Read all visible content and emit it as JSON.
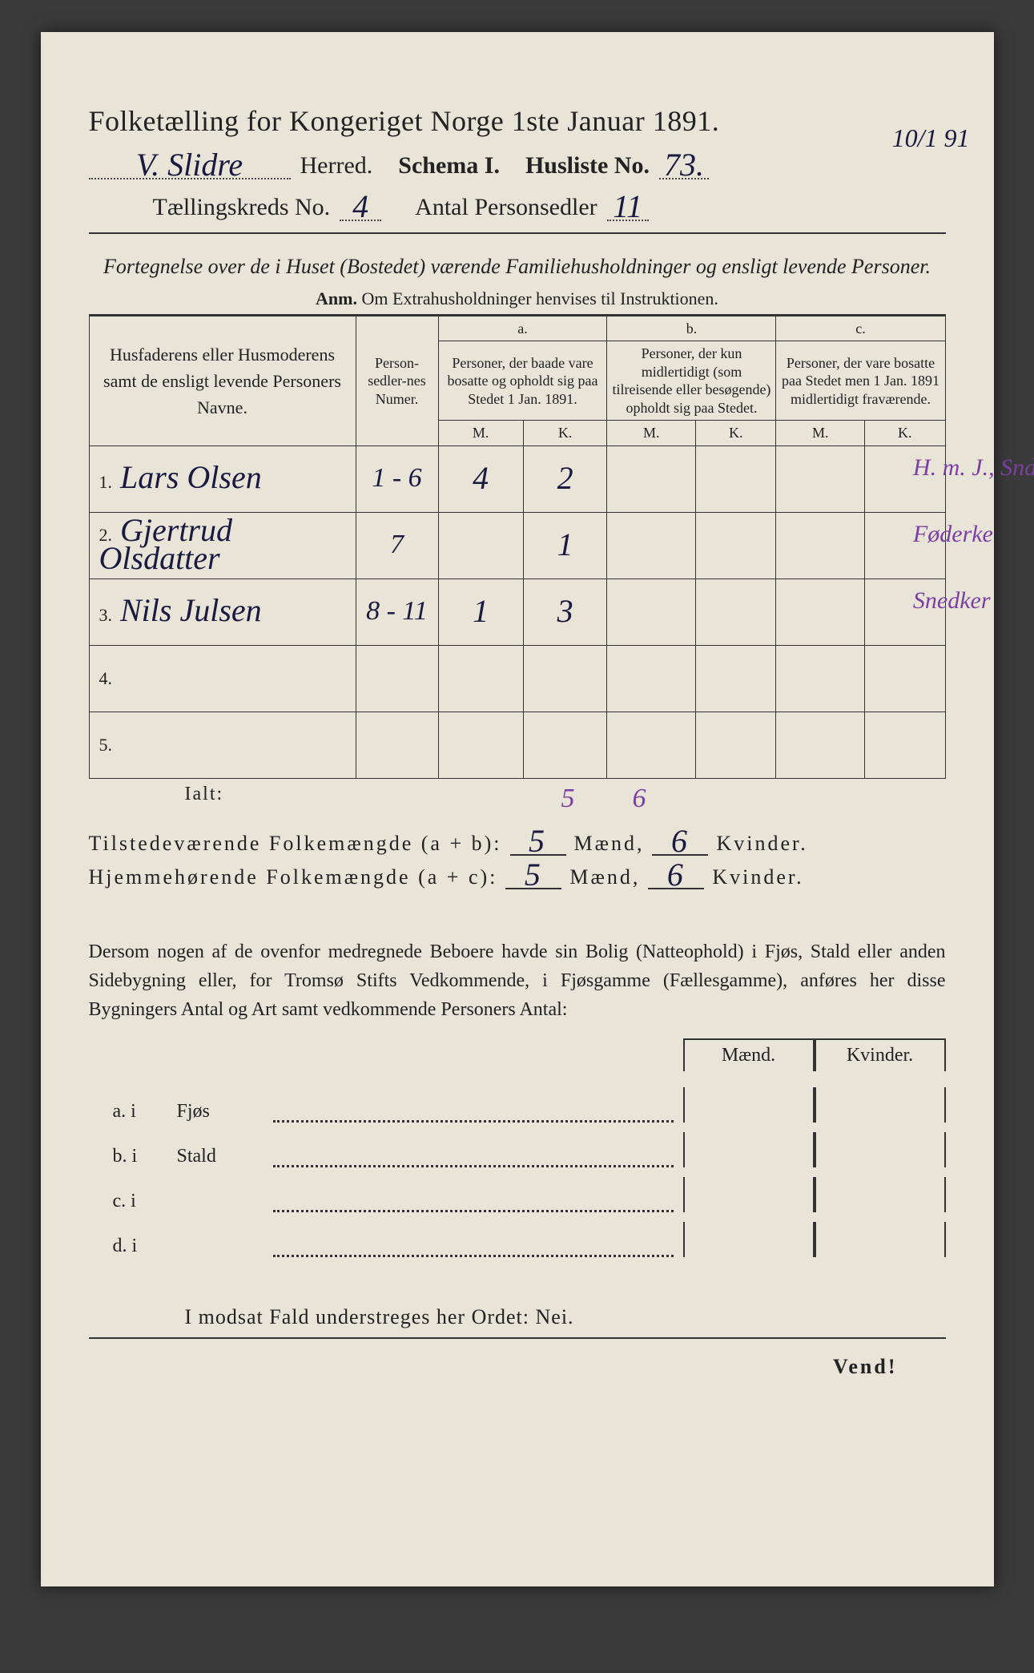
{
  "title": "Folketælling for Kongeriget Norge 1ste Januar 1891.",
  "herred_value": "V. Slidre",
  "herred_label": "Herred.",
  "schema_label": "Schema I.",
  "husliste_label": "Husliste No.",
  "husliste_value": "73.",
  "date_frac": "10/1 91",
  "kreds_label": "Tællingskreds No.",
  "kreds_value": "4",
  "antal_label": "Antal Personsedler",
  "antal_value": "11",
  "subheading": "Fortegnelse over de i Huset (Bostedet) værende Familiehusholdninger og ensligt levende Personer.",
  "anm_bold": "Anm.",
  "anm_text": "Om Extrahusholdninger henvises til Instruktionen.",
  "cols": {
    "name": "Husfaderens eller Husmoderens samt de ensligt levende Personers Navne.",
    "numer": "Person-sedler-nes Numer.",
    "a_label": "a.",
    "a_text": "Personer, der baade vare bosatte og opholdt sig paa Stedet 1 Jan. 1891.",
    "b_label": "b.",
    "b_text": "Personer, der kun midlertidigt (som tilreisende eller besøgende) opholdt sig paa Stedet.",
    "c_label": "c.",
    "c_text": "Personer, der vare bosatte paa Stedet men 1 Jan. 1891 midlertidigt fraværende.",
    "M": "M.",
    "K": "K."
  },
  "rows": [
    {
      "idx": "1.",
      "name": "Lars Olsen",
      "numer": "1 - 6",
      "aM": "4",
      "aK": "2",
      "bM": "",
      "bK": "",
      "cM": "",
      "cK": "",
      "note": "H. m. J., Snd."
    },
    {
      "idx": "2.",
      "name": "Gjertrud Olsdatter",
      "numer": "7",
      "aM": "",
      "aK": "1",
      "bM": "",
      "bK": "",
      "cM": "",
      "cK": "",
      "note": "Føderke"
    },
    {
      "idx": "3.",
      "name": "Nils Julsen",
      "numer": "8 - 11",
      "aM": "1",
      "aK": "3",
      "bM": "",
      "bK": "",
      "cM": "",
      "cK": "",
      "note": "Snedker"
    },
    {
      "idx": "4.",
      "name": "",
      "numer": "",
      "aM": "",
      "aK": "",
      "bM": "",
      "bK": "",
      "cM": "",
      "cK": "",
      "note": ""
    },
    {
      "idx": "5.",
      "name": "",
      "numer": "",
      "aM": "",
      "aK": "",
      "bM": "",
      "bK": "",
      "cM": "",
      "cK": "",
      "note": ""
    }
  ],
  "ialt_label": "Ialt:",
  "ialt_M": "5",
  "ialt_K": "6",
  "summary": {
    "line1_label": "Tilstedeværende Folkemængde (a + b):",
    "line2_label": "Hjemmehørende Folkemængde (a + c):",
    "m_label": "Mænd,",
    "k_label": "Kvinder.",
    "line1_m": "5",
    "line1_k": "6",
    "line2_m": "5",
    "line2_k": "6"
  },
  "para": "Dersom nogen af de ovenfor medregnede Beboere havde sin Bolig (Natteophold) i Fjøs, Stald eller anden Sidebygning eller, for Tromsø Stifts Vedkommende, i Fjøsgamme (Fællesgamme), anføres her disse Bygningers Antal og Art samt vedkommende Personers Antal:",
  "mk": {
    "m": "Mænd.",
    "k": "Kvinder."
  },
  "buildings": [
    {
      "lab": "a.  i",
      "typ": "Fjøs"
    },
    {
      "lab": "b.  i",
      "typ": "Stald"
    },
    {
      "lab": "c.  i",
      "typ": ""
    },
    {
      "lab": "d.  i",
      "typ": ""
    }
  ],
  "modsat": "I modsat Fald understreges her Ordet: Nei.",
  "vend": "Vend!"
}
